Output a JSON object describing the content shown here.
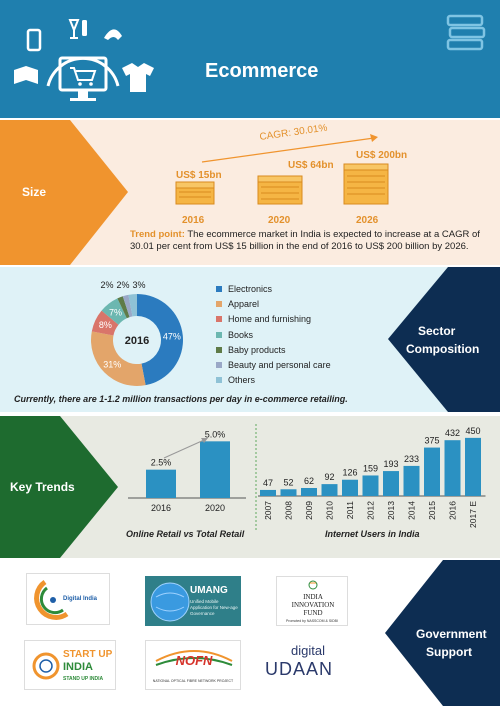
{
  "header": {
    "title": "Ecommerce"
  },
  "size": {
    "label": "Size",
    "cagr": "CAGR: 30.01%",
    "values": [
      {
        "amount": "US$ 15bn",
        "year": "2016"
      },
      {
        "amount": "US$ 64bn",
        "year": "2020"
      },
      {
        "amount": "US$ 200bn",
        "year": "2026"
      }
    ],
    "trend_label": "Trend point:",
    "trend_text": "The ecommerce market in India is expected to increase at a CAGR of 30.01 per cent from US$ 15 billion in the end of 2016 to US$ 200 billion by 2026."
  },
  "sector": {
    "label_line1": "Sector",
    "label_line2": "Composition",
    "year": "2016",
    "note": "Currently, there are 1-1.2 million transactions per day in e-commerce retailing."
  },
  "trends": {
    "label": "Key Trends",
    "retail_caption": "Online Retail vs Total Retail",
    "users_caption": "Internet Users in India"
  },
  "gov": {
    "label_line1": "Government",
    "label_line2": "Support",
    "logos": {
      "digital_india": "Digital India",
      "umang": "UMANG",
      "umang_sub": "Unified Mobile Application for New-age Governance",
      "innovation_line1": "INDIA",
      "innovation_line2": "INNOVATION",
      "innovation_line3": "FUND",
      "innovation_sub": "Promoted by NASSCOM & SIDBI",
      "startup_line1": "START UP",
      "startup_line2": "INDIA",
      "startup_line3": "STAND UP INDIA",
      "nofn": "NOFN",
      "nofn_sub": "NATIONAL OPTICAL FIBRE NETWORK PROJECT",
      "udaan_line1": "digital",
      "udaan_line2": "UDAAN"
    }
  },
  "colors": {
    "header_blue": "#1f7fae",
    "orange": "#f0942e",
    "navy": "#0d2d52",
    "green": "#1e6b2f",
    "bar_blue": "#2b91c2"
  },
  "chart_data": [
    {
      "type": "pie",
      "title": "2016",
      "categories": [
        "Electronics",
        "Apparel",
        "Home and furnishing",
        "Books",
        "Baby products",
        "Beauty and personal care",
        "Others"
      ],
      "values": [
        47,
        31,
        8,
        7,
        2,
        2,
        3
      ],
      "labels": [
        "47%",
        "31%",
        "8%",
        "7%",
        "2%",
        "2%",
        "3%"
      ],
      "colors": [
        "#2b7bbf",
        "#e3a56a",
        "#d9756a",
        "#6cb7b0",
        "#5f7b48",
        "#9aa8c7",
        "#8fc2d6"
      ],
      "legend": "right"
    },
    {
      "type": "bar",
      "title": "Online Retail vs Total Retail",
      "categories": [
        "2016",
        "2020"
      ],
      "values": [
        2.5,
        5.0
      ],
      "labels": [
        "2.5%",
        "5.0%"
      ],
      "ylim": [
        0,
        6
      ]
    },
    {
      "type": "bar",
      "title": "Internet Users in India",
      "categories": [
        "2007",
        "2008",
        "2009",
        "2010",
        "2011",
        "2012",
        "2013",
        "2014",
        "2015",
        "2016",
        "2017 E"
      ],
      "values": [
        47,
        52,
        62,
        92,
        126,
        159,
        193,
        233,
        375,
        432,
        450
      ],
      "ylim": [
        0,
        480
      ]
    }
  ]
}
